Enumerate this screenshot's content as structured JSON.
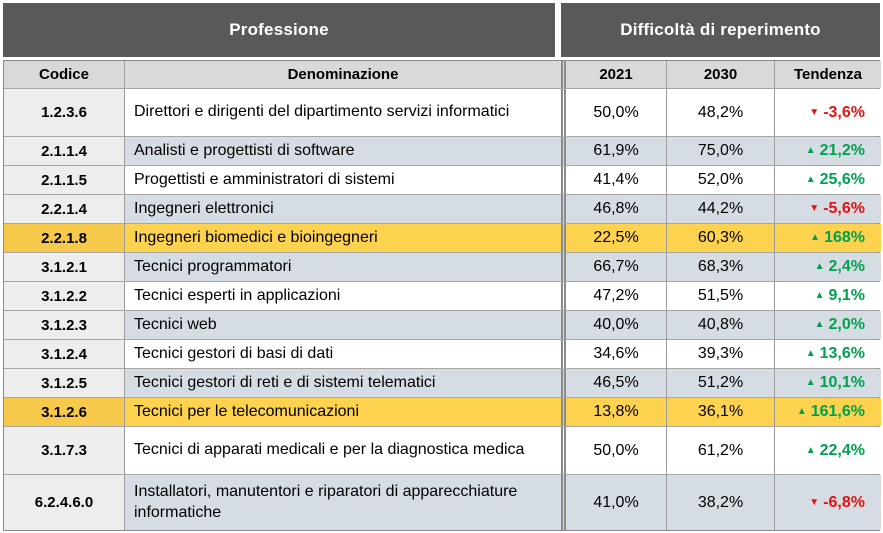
{
  "chart_data": {
    "type": "table",
    "group_headers": [
      "Professione",
      "Difficoltà di reperimento"
    ],
    "columns": [
      "Codice",
      "Denominazione",
      "2021",
      "2030",
      "Tendenza"
    ],
    "rows": [
      {
        "codice": "1.2.3.6",
        "denominazione": "Direttori e dirigenti del dipartimento servizi informatici",
        "y2021": "50,0%",
        "y2030": "48,2%",
        "tendenza": "-3,6%",
        "direction": "down",
        "stripe": "white",
        "size": "l"
      },
      {
        "codice": "2.1.1.4",
        "denominazione": "Analisti e progettisti di software",
        "y2021": "61,9%",
        "y2030": "75,0%",
        "tendenza": "21,2%",
        "direction": "up",
        "stripe": "blue",
        "size": "s"
      },
      {
        "codice": "2.1.1.5",
        "denominazione": "Progettisti e amministratori di sistemi",
        "y2021": "41,4%",
        "y2030": "52,0%",
        "tendenza": "25,6%",
        "direction": "up",
        "stripe": "white",
        "size": "s"
      },
      {
        "codice": "2.2.1.4",
        "denominazione": "Ingegneri elettronici",
        "y2021": "46,8%",
        "y2030": "44,2%",
        "tendenza": "-5,6%",
        "direction": "down",
        "stripe": "blue",
        "size": "s"
      },
      {
        "codice": "2.2.1.8",
        "denominazione": "Ingegneri biomedici e bioingegneri",
        "y2021": "22,5%",
        "y2030": "60,3%",
        "tendenza": "168%",
        "direction": "up",
        "stripe": "yellow",
        "size": "s"
      },
      {
        "codice": "3.1.2.1",
        "denominazione": "Tecnici programmatori",
        "y2021": "66,7%",
        "y2030": "68,3%",
        "tendenza": "2,4%",
        "direction": "up",
        "stripe": "blue",
        "size": "s"
      },
      {
        "codice": "3.1.2.2",
        "denominazione": "Tecnici esperti in applicazioni",
        "y2021": "47,2%",
        "y2030": "51,5%",
        "tendenza": "9,1%",
        "direction": "up",
        "stripe": "white",
        "size": "s"
      },
      {
        "codice": "3.1.2.3",
        "denominazione": "Tecnici web",
        "y2021": "40,0%",
        "y2030": "40,8%",
        "tendenza": "2,0%",
        "direction": "up",
        "stripe": "blue",
        "size": "s"
      },
      {
        "codice": "3.1.2.4",
        "denominazione": "Tecnici gestori di basi di dati",
        "y2021": "34,6%",
        "y2030": "39,3%",
        "tendenza": "13,6%",
        "direction": "up",
        "stripe": "white",
        "size": "s"
      },
      {
        "codice": "3.1.2.5",
        "denominazione": "Tecnici gestori di reti e di sistemi telematici",
        "y2021": "46,5%",
        "y2030": "51,2%",
        "tendenza": "10,1%",
        "direction": "up",
        "stripe": "blue",
        "size": "s"
      },
      {
        "codice": "3.1.2.6",
        "denominazione": "Tecnici per le telecomunicazioni",
        "y2021": "13,8%",
        "y2030": "36,1%",
        "tendenza": "161,6%",
        "direction": "up",
        "stripe": "yellow",
        "size": "s"
      },
      {
        "codice": "3.1.7.3",
        "denominazione": "Tecnici di apparati medicali e per la diagnostica medica",
        "y2021": "50,0%",
        "y2030": "61,2%",
        "tendenza": "22,4%",
        "direction": "up",
        "stripe": "white",
        "size": "l"
      },
      {
        "codice": "6.2.4.6.0",
        "denominazione": "Installatori, manutentori e riparatori di apparecchiature informatiche",
        "y2021": "41,0%",
        "y2030": "38,2%",
        "tendenza": "-6,8%",
        "direction": "down",
        "stripe": "blue",
        "size": "xl"
      }
    ]
  },
  "icons": {
    "trend_up": "▲",
    "trend_down": "▼"
  },
  "colors": {
    "group_header_bg": "#595959",
    "group_header_text": "#ffffff",
    "column_header_bg": "#d9d9d9",
    "codice_column_bg": "#ededed",
    "stripe_blue": "#d6dce4",
    "stripe_white": "#ffffff",
    "highlight_yellow": "#fcd24f",
    "highlight_yellow_codice": "#f7c94a",
    "trend_up_green": "#00a14f",
    "trend_down_red": "#e01414",
    "grid_border": "#9c9c9c"
  }
}
